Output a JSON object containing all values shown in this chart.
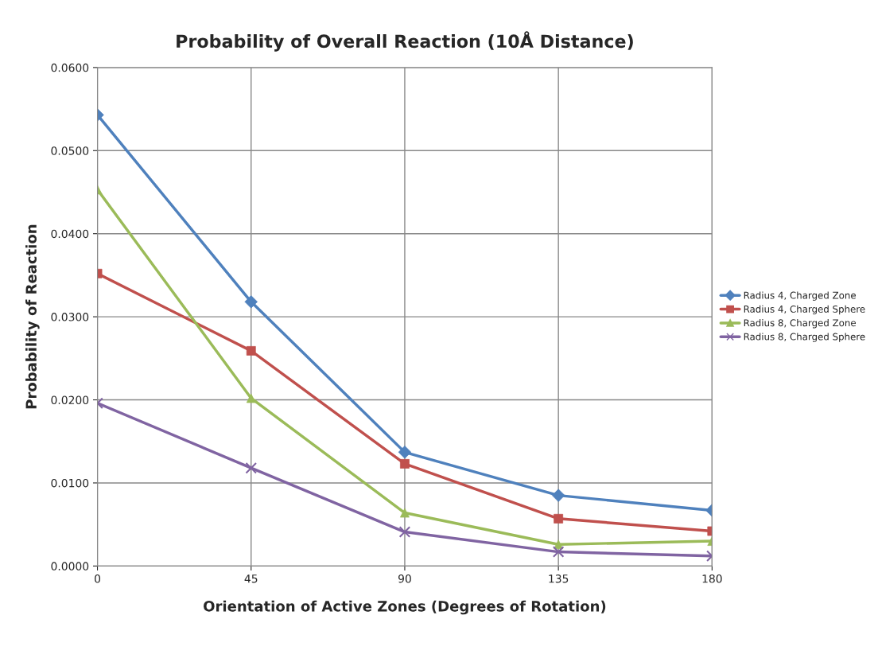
{
  "chart_data": {
    "type": "line",
    "title": "Probability of Overall Reaction (10Å Distance)",
    "xlabel": "Orientation of Active Zones (Degrees of Rotation)",
    "ylabel": "Probability of Reaction",
    "x": [
      0,
      45,
      90,
      135,
      180
    ],
    "series": [
      {
        "name": "Radius 4, Charged Zone",
        "color": "#4f81bd",
        "marker": "diamond",
        "values": [
          0.0543,
          0.0318,
          0.0137,
          0.0085,
          0.0067
        ]
      },
      {
        "name": "Radius 4, Charged Sphere",
        "color": "#c0504d",
        "marker": "square",
        "values": [
          0.0352,
          0.0259,
          0.0123,
          0.0057,
          0.0042
        ]
      },
      {
        "name": "Radius 8, Charged Zone",
        "color": "#9bbb59",
        "marker": "triangle",
        "values": [
          0.0453,
          0.0202,
          0.0064,
          0.0026,
          0.003
        ]
      },
      {
        "name": "Radius 8, Charged Sphere",
        "color": "#8064a2",
        "marker": "cross",
        "values": [
          0.0196,
          0.0118,
          0.0041,
          0.0017,
          0.0012
        ]
      }
    ],
    "xlim": [
      0,
      180
    ],
    "xticks": [
      0,
      45,
      90,
      135,
      180
    ],
    "ylim": [
      0,
      0.06
    ],
    "yticks": [
      {
        "value": 0,
        "label": "0.0000"
      },
      {
        "value": 0.01,
        "label": "0.0100"
      },
      {
        "value": 0.02,
        "label": "0.0200"
      },
      {
        "value": 0.03,
        "label": "0.0300"
      },
      {
        "value": 0.04,
        "label": "0.0400"
      },
      {
        "value": 0.05,
        "label": "0.0500"
      },
      {
        "value": 0.06,
        "label": "0.0600"
      }
    ],
    "grid": true,
    "legend": "right",
    "line_style": "solid"
  }
}
